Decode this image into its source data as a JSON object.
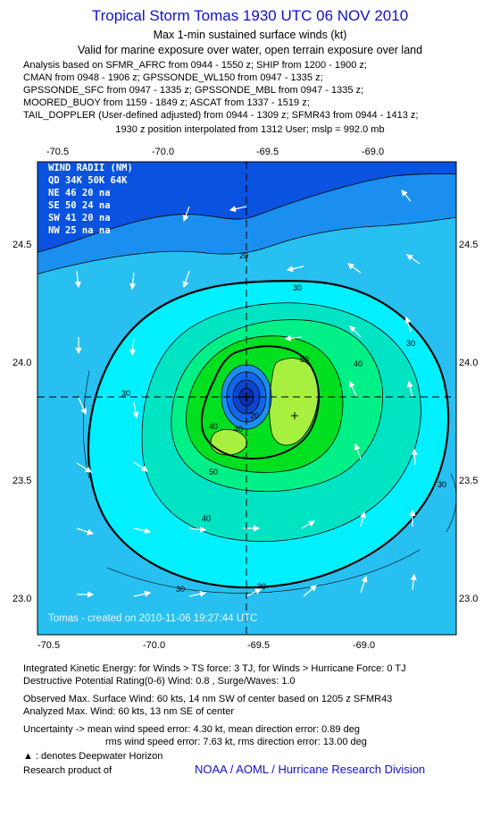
{
  "header": {
    "title": "Tropical Storm Tomas 1930 UTC 06 NOV 2010",
    "subtitle1": "Max 1-min sustained surface winds (kt)",
    "subtitle2": "Valid for marine exposure over water, open terrain exposure over land"
  },
  "analysis_lines": [
    "Analysis based on SFMR_AFRC from 0944 - 1550 z; SHIP from 1200 - 1900 z;",
    "CMAN from 0948 - 1906 z; GPSSONDE_WL150 from 0947 - 1335 z;",
    "GPSSONDE_SFC from 0947 - 1335 z; GPSSONDE_MBL from 0947 - 1335 z;",
    "MOORED_BUOY from 1159 - 1849 z; ASCAT from 1337 - 1519 z;",
    "TAIL_DOPPLER (User-defined adjusted) from 0944 - 1309 z; SFMR43 from 0944 - 1413 z;"
  ],
  "position_line": "1930 z position interpolated from 1312 User; mslp = 992.0 mb",
  "map": {
    "lon_ticks": [
      "-70.5",
      "-70.0",
      "-69.5",
      "-69.0"
    ],
    "lat_ticks": [
      "24.5",
      "24.0",
      "23.5",
      "23.0"
    ],
    "contour_labels": [
      "20",
      "30",
      "30",
      "30",
      "30",
      "30",
      "30",
      "40",
      "40",
      "40",
      "50",
      "50",
      "20",
      "40"
    ],
    "wind_radii": {
      "title": "WIND RADII (NM)",
      "header": "QD  34K  50K  64K",
      "rows": [
        "NE   46   20   na",
        "SE   50   24   na",
        "SW   41   20   na",
        "NW   25   na   na"
      ]
    },
    "watermark": "Tomas - created on 2010-11-06 19:27:44 UTC",
    "colors": {
      "w15": "#0a52e0",
      "w20": "#1a8ff0",
      "w25": "#27c0f0",
      "w30": "#00f0ff",
      "w35": "#00e0b0",
      "w40": "#00f088",
      "w45": "#00e020",
      "w50": "#a0f030",
      "center_blue": "#1040e0"
    }
  },
  "footer": {
    "ike": "Integrated Kinetic Energy:  for Winds > TS force: 3 TJ,  for Winds > Hurricane Force: 0 TJ",
    "dpr": "Destructive Potential Rating(0-6)   Wind: 0.8 , Surge/Waves: 1.0",
    "observed": "Observed Max. Surface Wind: 60 kts, 14 nm SW of center based on 1205 z SFMR43",
    "analyzed": "Analyzed Max. Wind: 60 kts, 13 nm SE of center",
    "uncertainty1": "Uncertainty -> mean wind speed error: 4.30 kt,   mean direction error: 0.89 deg",
    "uncertainty2": "rms wind speed error: 7.63 kt,   rms direction error: 13.00 deg",
    "deepwater": "▲ : denotes Deepwater Horizon",
    "research": "Research product of",
    "credit": "NOAA / AOML / Hurricane Research Division"
  }
}
